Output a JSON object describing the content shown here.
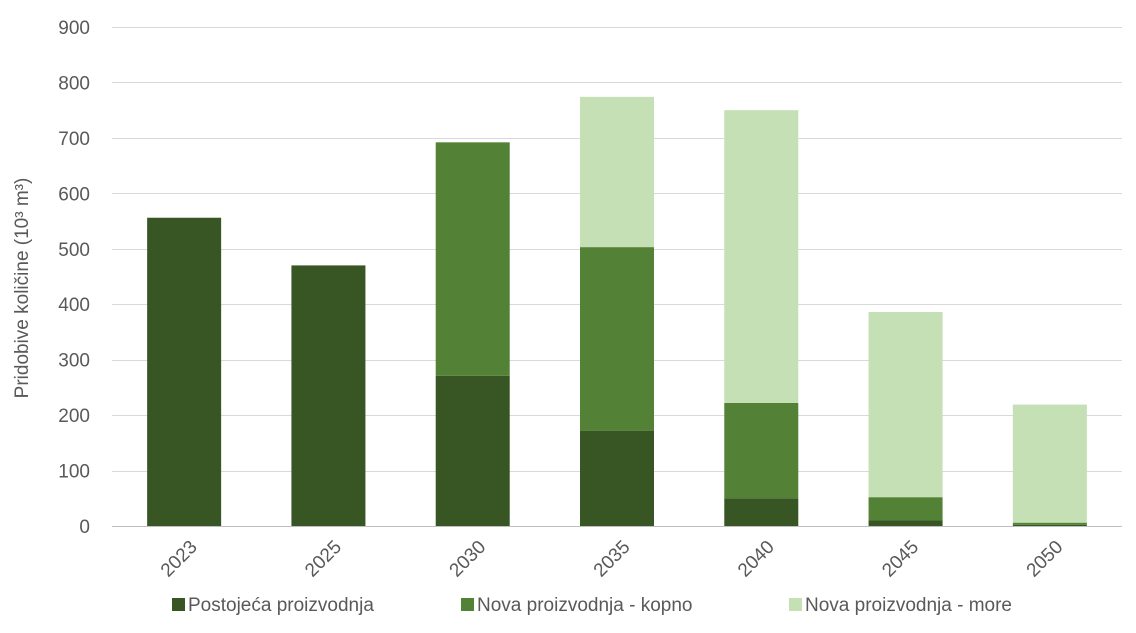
{
  "chart_data": {
    "type": "bar",
    "stacked": true,
    "categories": [
      "2023",
      "2025",
      "2030",
      "2035",
      "2040",
      "2045",
      "2050"
    ],
    "series": [
      {
        "name": "Postojeća proizvodnja",
        "color": "#375623",
        "values": [
          556,
          470,
          271,
          172,
          50,
          10,
          2
        ]
      },
      {
        "name": "Nova proizvodnja - kopno",
        "color": "#538135",
        "values": [
          0,
          0,
          421,
          331,
          172,
          42,
          4
        ]
      },
      {
        "name": "Nova proizvodnja - more",
        "color": "#c5e0b4",
        "values": [
          0,
          0,
          0,
          271,
          528,
          334,
          213
        ]
      }
    ],
    "ylabel": "Pridobive količine (10³ m³)",
    "ylim": [
      0,
      900
    ],
    "yticks": [
      0,
      100,
      200,
      300,
      400,
      500,
      600,
      700,
      800,
      900
    ],
    "grid": true,
    "legend_position": "bottom"
  }
}
